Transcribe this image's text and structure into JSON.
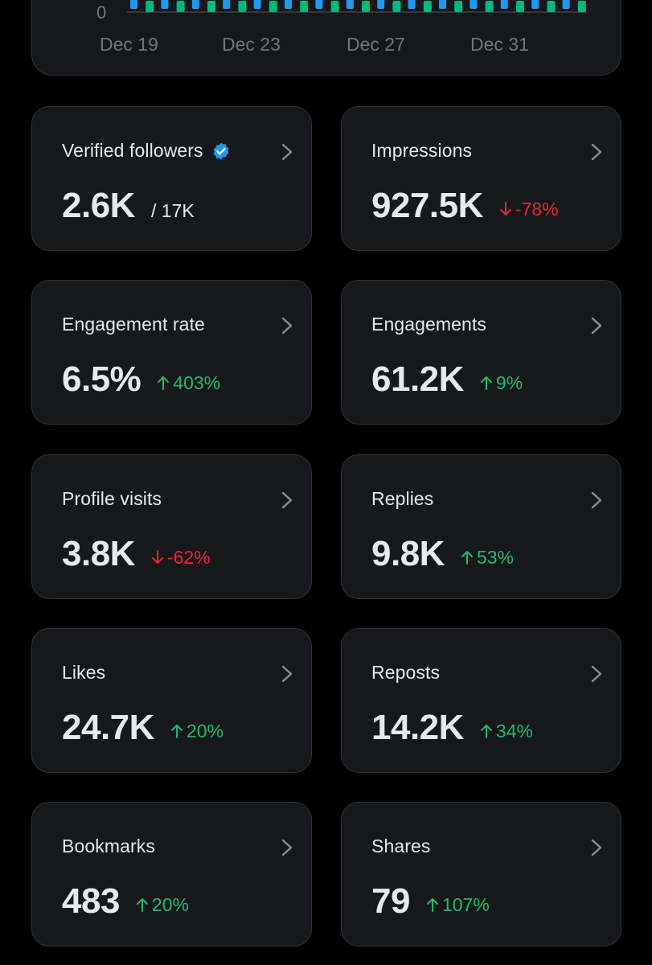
{
  "chart": {
    "y_zero_label": "0",
    "x_labels": [
      "Dec 19",
      "Dec 23",
      "Dec 27",
      "Dec 31"
    ],
    "colors": {
      "blue": "#1d9bf0",
      "green": "#00ba7c"
    }
  },
  "chart_data": {
    "type": "bar",
    "title": "",
    "xlabel": "",
    "ylabel": "",
    "categories": [
      "Dec 19",
      "Dec 23",
      "Dec 27",
      "Dec 31"
    ],
    "series": [
      {
        "name": "blue-series",
        "color": "#1d9bf0"
      },
      {
        "name": "green-series",
        "color": "#00ba7c"
      }
    ],
    "y_tick_labels": [
      "0"
    ],
    "note": "Only bar bottoms visible; bar heights cropped above the screenshot"
  },
  "cards": [
    {
      "label": "Verified followers",
      "value": "2.6K",
      "sub": "/ 17K",
      "verified": true
    },
    {
      "label": "Impressions",
      "value": "927.5K",
      "change": "-78%",
      "direction": "down"
    },
    {
      "label": "Engagement rate",
      "value": "6.5%",
      "change": "403%",
      "direction": "up"
    },
    {
      "label": "Engagements",
      "value": "61.2K",
      "change": "9%",
      "direction": "up"
    },
    {
      "label": "Profile visits",
      "value": "3.8K",
      "change": "-62%",
      "direction": "down"
    },
    {
      "label": "Replies",
      "value": "9.8K",
      "change": "53%",
      "direction": "up"
    },
    {
      "label": "Likes",
      "value": "24.7K",
      "change": "20%",
      "direction": "up"
    },
    {
      "label": "Reposts",
      "value": "14.2K",
      "change": "34%",
      "direction": "up"
    },
    {
      "label": "Bookmarks",
      "value": "483",
      "change": "20%",
      "direction": "up"
    },
    {
      "label": "Shares",
      "value": "79",
      "change": "107%",
      "direction": "up"
    }
  ],
  "colors": {
    "up": "#1fbb6a",
    "down": "#f4212e",
    "verified": "#1d9bf0"
  }
}
